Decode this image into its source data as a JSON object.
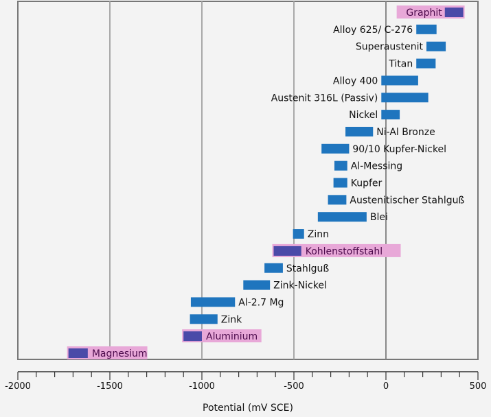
{
  "chart_data": {
    "type": "bar",
    "orientation": "horizontal-range",
    "xlabel": "Potential (mV SCE)",
    "xlim": [
      -2000,
      500
    ],
    "xticks": [
      -2000,
      -1500,
      -1000,
      -500,
      0,
      500
    ],
    "xtick_labels": [
      "-2000",
      "-1500",
      "-1000",
      "-500",
      "0",
      "500"
    ],
    "grid": true,
    "colors": {
      "bar": "#1f75be",
      "highlight_bar": "#4a4aa8",
      "highlight_bg": "#e8a8d8",
      "highlight_text": "#4b0a4b"
    },
    "items": [
      {
        "label": "Graphit",
        "min": 320,
        "max": 420,
        "highlight": true
      },
      {
        "label": "Alloy 625/ C-276",
        "min": 165,
        "max": 275,
        "highlight": false
      },
      {
        "label": "Superaustenit",
        "min": 220,
        "max": 325,
        "highlight": false
      },
      {
        "label": "Titan",
        "min": 165,
        "max": 270,
        "highlight": false
      },
      {
        "label": "Alloy 400",
        "min": -25,
        "max": 175,
        "highlight": false
      },
      {
        "label": "Austenit 316L (Passiv)",
        "min": -25,
        "max": 230,
        "highlight": false
      },
      {
        "label": "Nickel",
        "min": -25,
        "max": 75,
        "highlight": false
      },
      {
        "label": "Ni-Al Bronze",
        "min": -220,
        "max": -70,
        "highlight": false
      },
      {
        "label": "90/10 Kupfer-Nickel",
        "min": -350,
        "max": -200,
        "highlight": false
      },
      {
        "label": "Al-Messing",
        "min": -280,
        "max": -210,
        "highlight": false
      },
      {
        "label": "Kupfer",
        "min": -285,
        "max": -210,
        "highlight": false
      },
      {
        "label": "Austenitischer Stahlguß",
        "min": -315,
        "max": -215,
        "highlight": false
      },
      {
        "label": "Blei",
        "min": -370,
        "max": -105,
        "highlight": false
      },
      {
        "label": "Zinn",
        "min": -505,
        "max": -445,
        "highlight": false
      },
      {
        "label": "Kohlenstoffstahl",
        "min": -610,
        "max": -460,
        "highlight": true
      },
      {
        "label": "Stahlguß",
        "min": -660,
        "max": -560,
        "highlight": false
      },
      {
        "label": "Zink-Nickel",
        "min": -775,
        "max": -630,
        "highlight": false
      },
      {
        "label": "Al-2.7 Mg",
        "min": -1060,
        "max": -820,
        "highlight": false
      },
      {
        "label": "Zink",
        "min": -1065,
        "max": -915,
        "highlight": false
      },
      {
        "label": "Aluminium",
        "min": -1100,
        "max": -1000,
        "highlight": true
      },
      {
        "label": "Magnesium",
        "min": -1725,
        "max": -1620,
        "highlight": true
      }
    ]
  }
}
